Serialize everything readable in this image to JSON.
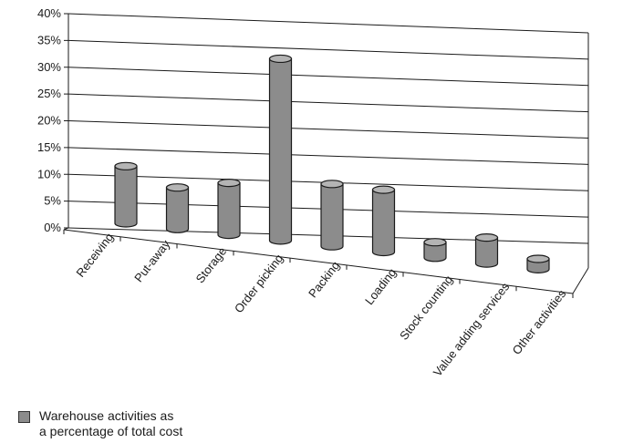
{
  "chart_data": {
    "type": "bar",
    "style": "3d-cylinder",
    "categories": [
      "Receiving",
      "Put-away",
      "Storage",
      "Order picking",
      "Packing",
      "Loading",
      "Stock counting",
      "Value adding services",
      "Other activities"
    ],
    "series": [
      {
        "name": "Warehouse activities as\na percentage of total cost",
        "values": [
          11,
          8,
          10,
          35,
          12,
          12,
          3,
          5,
          2
        ]
      }
    ],
    "ylim": [
      0,
      40
    ],
    "yticks": [
      "0%",
      "5%",
      "10%",
      "15%",
      "20%",
      "25%",
      "30%",
      "35%",
      "40%"
    ],
    "grid": true,
    "legend_position": "bottom-left",
    "colors": {
      "bar": "#8c8c8c",
      "bar_top": "#b4b4b4",
      "outline": "#1a1a1a",
      "grid": "#1a1a1a"
    }
  }
}
